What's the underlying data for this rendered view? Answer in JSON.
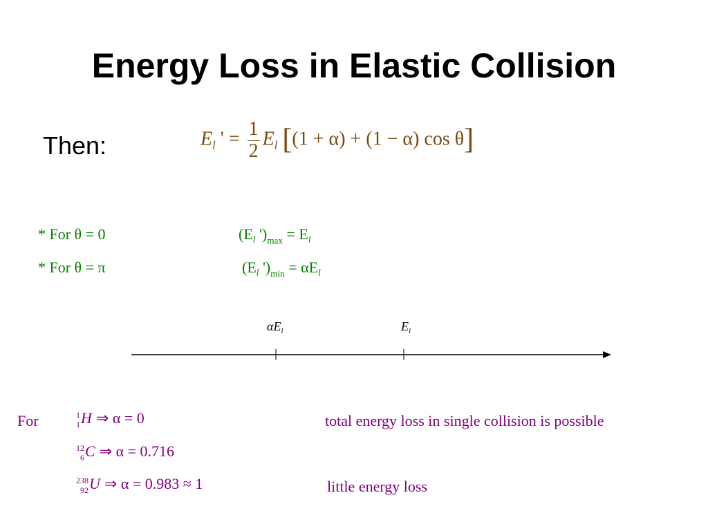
{
  "title": "Energy Loss in Elastic Collision",
  "then": {
    "label": "Then:",
    "equation": {
      "lhs": "E",
      "lhs_sub": "l",
      "lhs_tail": "' =",
      "numerator": "1",
      "denominator": "2",
      "factor": "E",
      "factor_sub": "l",
      "open": "[",
      "body": "(1 + α) + (1 − α) cos θ",
      "close": "]"
    }
  },
  "cases": [
    {
      "condition": "* For θ = 0",
      "lhs": "(E",
      "lhs_sub": "l",
      "lhs_tail": " ')",
      "limit": "max",
      "rhs": "= E",
      "rhs_sub": "l"
    },
    {
      "condition": "* For θ = π",
      "lhs": "(E",
      "lhs_sub": "l",
      "lhs_tail": " ')",
      "limit": "min",
      "rhs": "= αE",
      "rhs_sub": "l"
    }
  ],
  "axis": {
    "labels": [
      {
        "text": "αE",
        "sub": "l"
      },
      {
        "text": "E",
        "sub": "l"
      }
    ]
  },
  "nuclei": {
    "label": "For",
    "rows": [
      {
        "mass": "1",
        "charge": "1",
        "symbol": "H",
        "relation": "⇒ α = 0",
        "note": "total energy loss in single collision is possible"
      },
      {
        "mass": "12",
        "charge": "6",
        "symbol": "C",
        "relation": "⇒ α = 0.716"
      },
      {
        "mass": "238",
        "charge": "92",
        "symbol": "U",
        "relation": "⇒ α = 0.983 ≈ 1",
        "note": "little energy loss"
      }
    ]
  }
}
